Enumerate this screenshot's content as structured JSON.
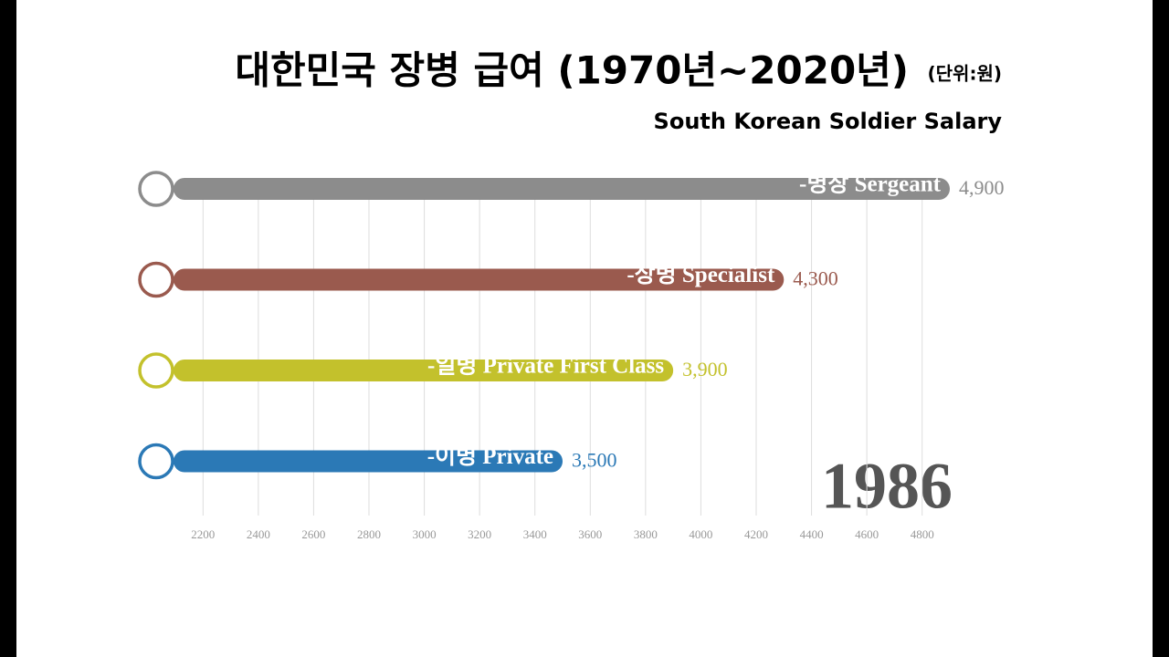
{
  "chart_data": {
    "type": "bar",
    "orientation": "horizontal",
    "title": "대한민국 장병 급여 (1970년~2020년)",
    "unit": "(단위:원)",
    "subtitle": "South Korean Soldier Salary",
    "annotation": "1986",
    "categories": [
      "-병장 Sergeant",
      "-상병 Specialist",
      "-일병 Private First Class",
      "-이병 Private"
    ],
    "values": [
      4900,
      4300,
      3900,
      3500
    ],
    "value_labels": [
      "4,900",
      "4,300",
      "3,900",
      "3,500"
    ],
    "colors": [
      "#8c8c8c",
      "#9a5a4e",
      "#c3c12c",
      "#2b79b6"
    ],
    "xlim": [
      2100,
      4900
    ],
    "xticks": [
      2200,
      2400,
      2600,
      2800,
      3000,
      3200,
      3400,
      3600,
      3800,
      4000,
      4200,
      4400,
      4600,
      4800
    ],
    "grid": true
  }
}
